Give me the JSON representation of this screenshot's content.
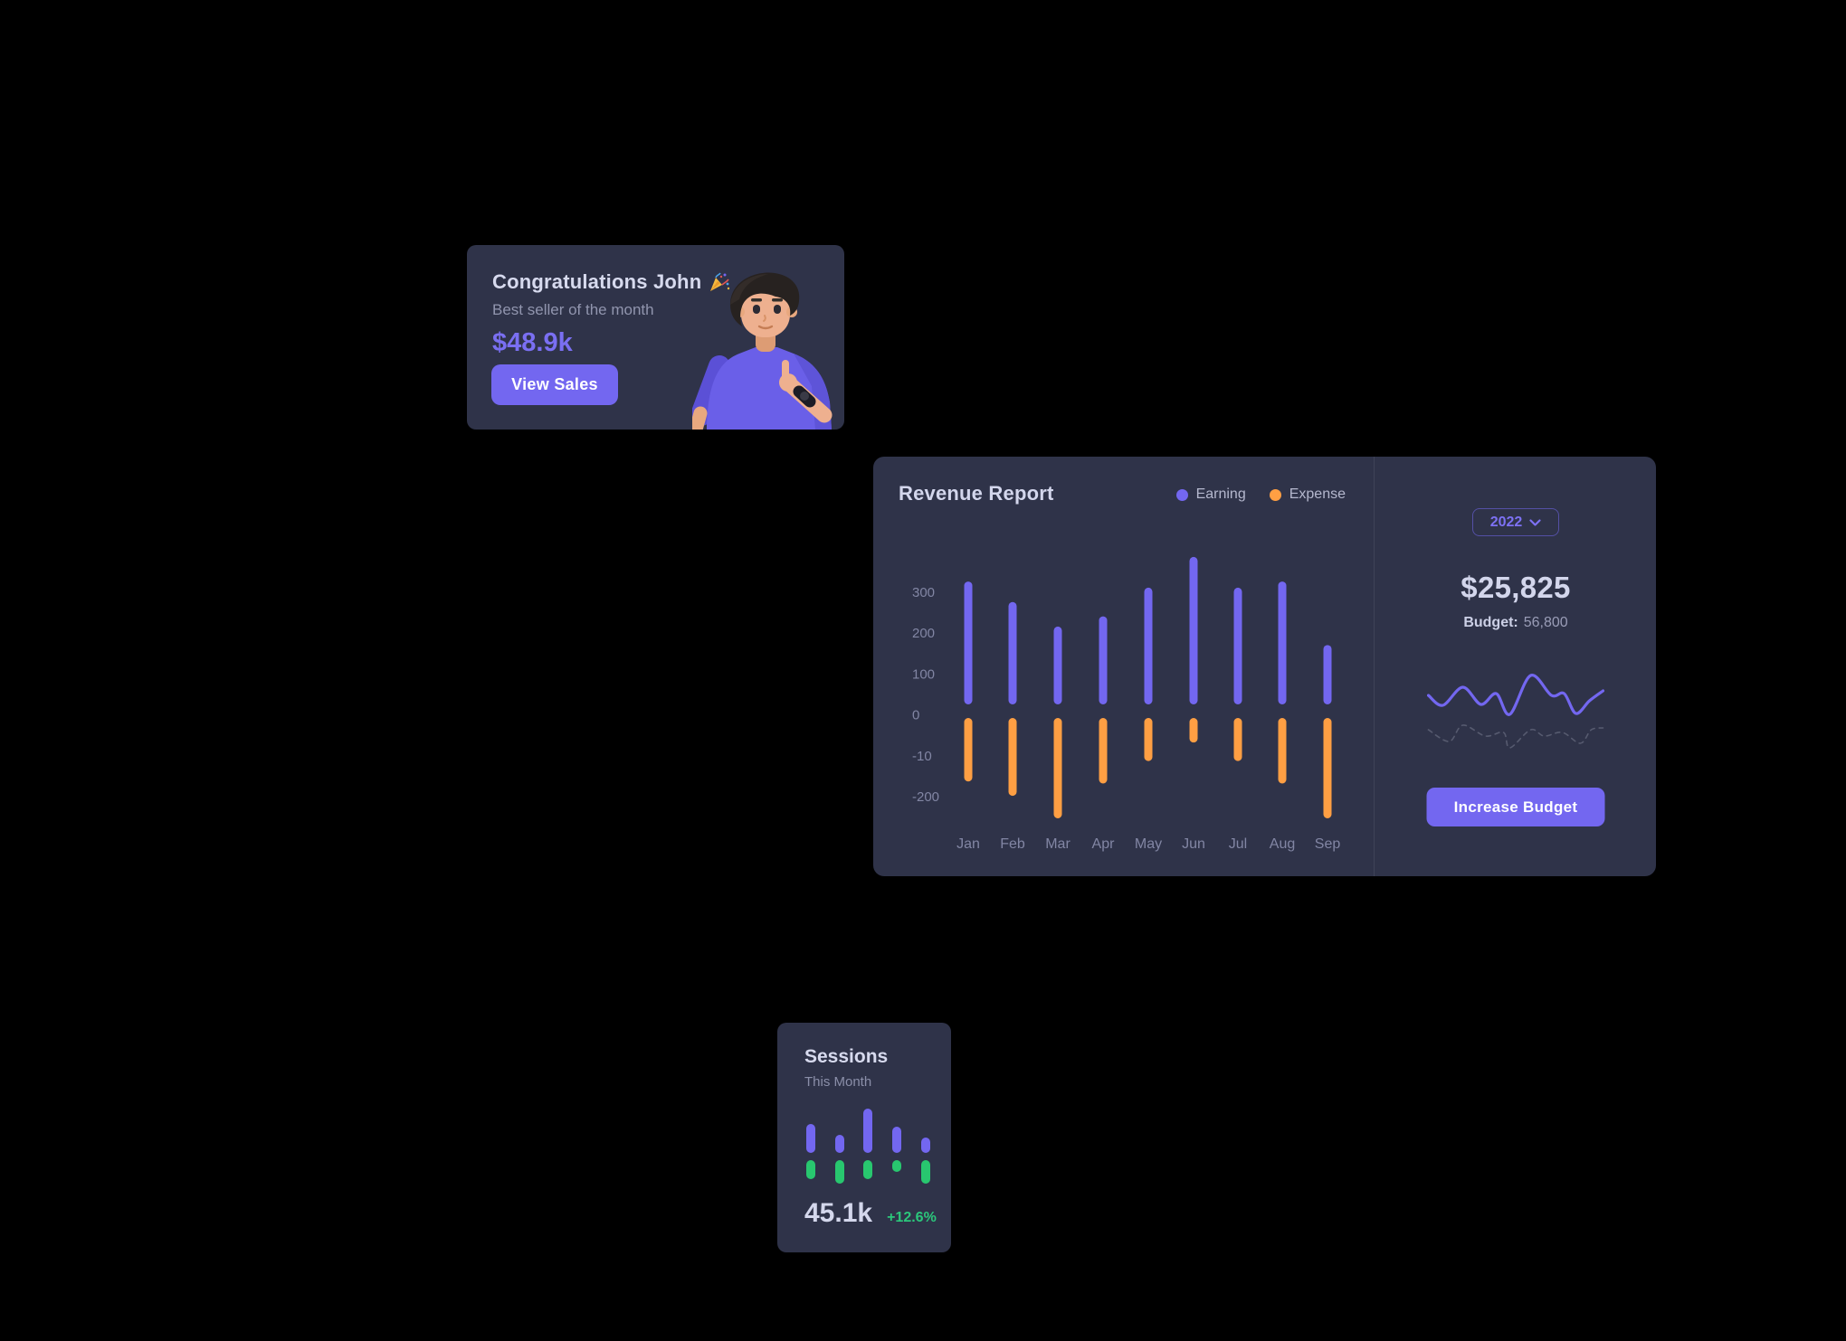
{
  "colors": {
    "page_bg": "#000000",
    "card_bg": "#2f3349",
    "primary": "#7367f0",
    "warning": "#ff9f43",
    "success": "#28c76f",
    "heading": "#d3d6ec",
    "muted": "#9195ae",
    "axis_label": "#8286a4"
  },
  "congrats_card": {
    "title": "Congratulations John",
    "title_icon": "party-popper-icon",
    "subtitle": "Best seller of the month",
    "amount": "$48.9k",
    "button_label": "View Sales",
    "illustration": "man-thumbs-up-3d"
  },
  "revenue_card": {
    "title": "Revenue Report",
    "legend": [
      {
        "label": "Earning",
        "color": "#7367f0"
      },
      {
        "label": "Expense",
        "color": "#ff9f43"
      }
    ],
    "year_select": {
      "value": "2022",
      "icon": "chevron-down-icon"
    },
    "total": "$25,825",
    "budget_label": "Budget:",
    "budget_value": "56,800",
    "button_label": "Increase Budget",
    "chart_data": {
      "type": "bar",
      "categories": [
        "Jan",
        "Feb",
        "Mar",
        "Apr",
        "May",
        "Jun",
        "Jul",
        "Aug",
        "Sep"
      ],
      "series": [
        {
          "name": "Earning",
          "color": "#7367f0",
          "values": [
            300,
            250,
            190,
            215,
            285,
            360,
            285,
            300,
            145
          ]
        },
        {
          "name": "Expense",
          "color": "#ff9f43",
          "values": [
            -155,
            -190,
            -245,
            -160,
            -105,
            -60,
            -105,
            -160,
            -245
          ]
        }
      ],
      "ytick_labels": [
        "300",
        "200",
        "100",
        "0",
        "-10",
        "-200"
      ],
      "grid": false,
      "legend_position": "top-right"
    },
    "sparkline_data": {
      "type": "line",
      "series": [
        {
          "name": "budget-current",
          "style": "solid",
          "color": "#7367f0",
          "width": 3.2,
          "points": [
            [
              0,
              27
            ],
            [
              16,
              38
            ],
            [
              38,
              18
            ],
            [
              58,
              37
            ],
            [
              75,
              25
            ],
            [
              90,
              48
            ],
            [
              113,
              5
            ],
            [
              136,
              27
            ],
            [
              150,
              25
            ],
            [
              163,
              47
            ],
            [
              178,
              33
            ],
            [
              193,
              22
            ]
          ]
        },
        {
          "name": "budget-previous",
          "style": "dashed",
          "color": "rgba(228,230,244,0.22)",
          "width": 1.6,
          "points": [
            [
              0,
              65
            ],
            [
              23,
              78
            ],
            [
              38,
              60
            ],
            [
              63,
              72
            ],
            [
              83,
              68
            ],
            [
              90,
              85
            ],
            [
              113,
              65
            ],
            [
              128,
              72
            ],
            [
              148,
              68
            ],
            [
              168,
              80
            ],
            [
              180,
              65
            ],
            [
              193,
              63
            ]
          ]
        }
      ]
    }
  },
  "sessions_card": {
    "title": "Sessions",
    "subtitle": "This Month",
    "value": "45.1k",
    "delta": "+12.6%",
    "chart_data": {
      "type": "bar",
      "series": [
        {
          "name": "up",
          "color": "#7367f0",
          "values": [
            32,
            20,
            49,
            29,
            17
          ]
        },
        {
          "name": "down",
          "color": "#28c76f",
          "values": [
            -21,
            -26,
            -21,
            -13,
            -26
          ]
        }
      ]
    }
  }
}
